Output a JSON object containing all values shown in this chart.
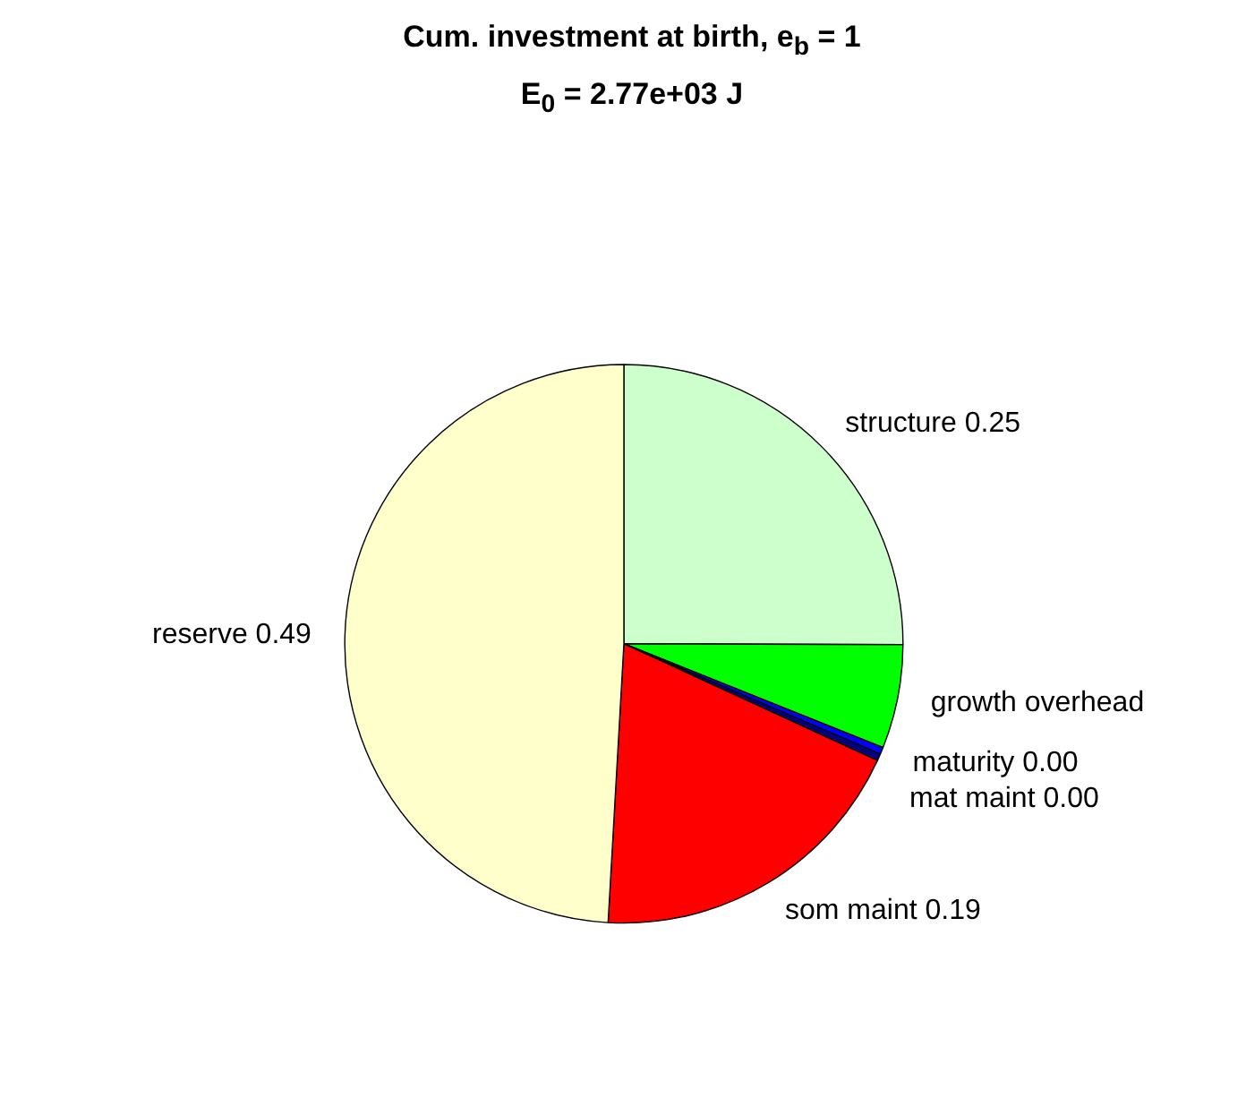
{
  "chart_data": {
    "type": "pie",
    "title": "Cum. investment at birth, e$_{b}$ = 1",
    "subtitle": "E$_{0}$ = 2.77e+03 J",
    "categories": [
      "structure",
      "growth overhead",
      "maturity",
      "mat maint",
      "som maint",
      "reserve"
    ],
    "values": [
      0.25,
      0.06,
      0.004,
      0.004,
      0.19,
      0.49
    ],
    "value_labels": [
      "0.25",
      null,
      "0.00",
      "0.00",
      "0.19",
      "0.49"
    ],
    "colors": [
      "#ccffcc",
      "#00ff00",
      "#0000ff",
      "#000080",
      "#ff0000",
      "#ffffcc"
    ]
  }
}
